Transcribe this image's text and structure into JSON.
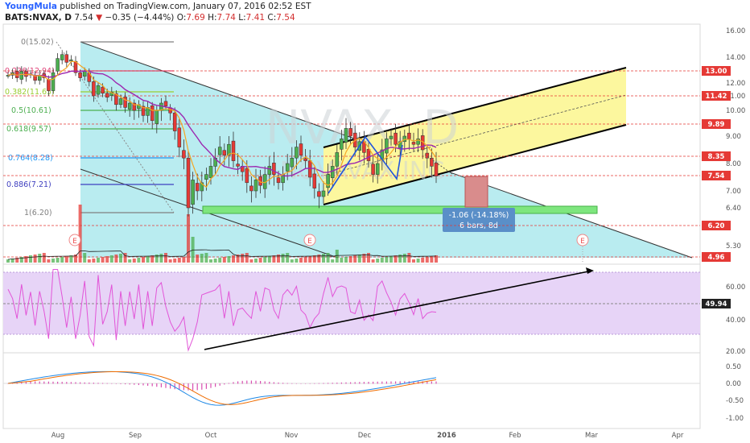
{
  "header": {
    "author": "YoungMula",
    "published_text": "published on TradingView.com, January 07, 2016 02:52 EST",
    "symbol": "BATS:NVAX, D",
    "last": "7.54",
    "change_arrow": "▼",
    "change": "−0.35 (−4.44%)",
    "open_label": "O:",
    "open": "7.69",
    "high_label": "H:",
    "high": "7.74",
    "low_label": "L:",
    "low": "7.41",
    "close_label": "C:",
    "close": "7.54"
  },
  "watermark": {
    "line1": "NVAX, D",
    "line2": "NOVAVAX INC"
  },
  "price_axis": {
    "ticks": [
      "16.00",
      "14.00",
      "12.00",
      "11.00",
      "10.00",
      "9.00",
      "8.00",
      "7.00",
      "6.40",
      "5.30"
    ],
    "tags": [
      {
        "label": "13.00",
        "color": "#e53935"
      },
      {
        "label": "11.42",
        "color": "#e53935"
      },
      {
        "label": "9.89",
        "color": "#e53935"
      },
      {
        "label": "8.35",
        "color": "#e53935"
      },
      {
        "label": "7.54",
        "color": "#e53935"
      },
      {
        "label": "6.20",
        "color": "#e53935"
      },
      {
        "label": "4.96",
        "color": "#e53935"
      }
    ]
  },
  "fib_levels": [
    {
      "label": "0(15.02)",
      "color": "#808080"
    },
    {
      "label": "0.236(12.94)",
      "color": "#e0457b"
    },
    {
      "label": "0.382(11.65)",
      "color": "#9acd32"
    },
    {
      "label": "0.5(10.61)",
      "color": "#4caf50"
    },
    {
      "label": "0.618(9.57)",
      "color": "#4caf50"
    },
    {
      "label": "0.764(8.28)",
      "color": "#2196f3"
    },
    {
      "label": "0.886(7.21)",
      "color": "#3f3fbf"
    },
    {
      "label": "1(6.20)",
      "color": "#808080"
    }
  ],
  "measure": {
    "line1": "-1.06 (-14.18%)",
    "line2": "6 bars, 8d"
  },
  "earnings_marker": "E",
  "rsi_axis": {
    "ticks": [
      "60.00",
      "40.00",
      "20.00"
    ],
    "tag": "49.94"
  },
  "macd_axis": {
    "ticks": [
      "0.50",
      "0.00",
      "-0.50",
      "-1.00"
    ]
  },
  "time_axis": [
    "Aug",
    "Sep",
    "Oct",
    "Nov",
    "Dec",
    "2016",
    "Feb",
    "Mar",
    "Apr"
  ],
  "colors": {
    "up": "#4caf50",
    "down": "#e53935",
    "channel_fill": "#b9ecf0",
    "yellow_fill": "#fcf79e",
    "rsi": "#e255d8",
    "rsi_band": "#e7d4f7"
  }
}
